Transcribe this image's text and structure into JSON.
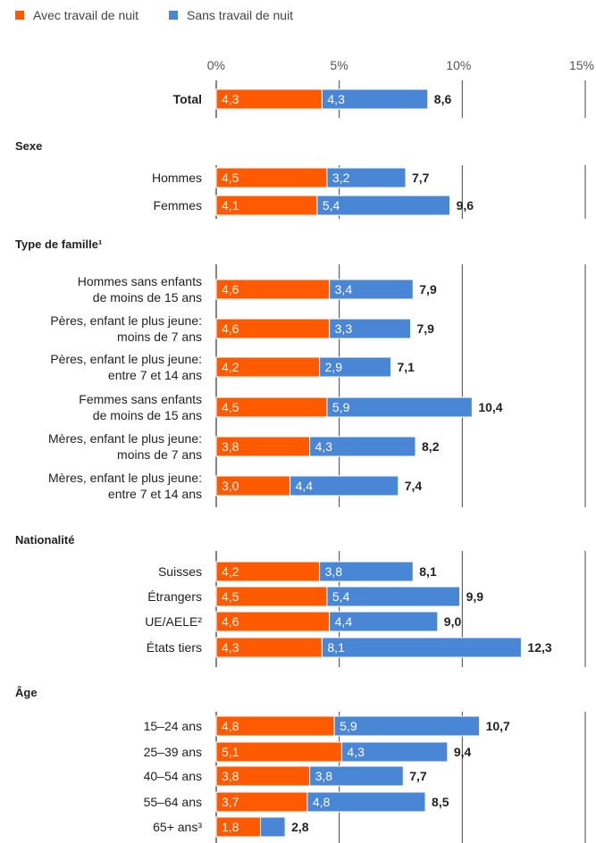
{
  "chart_data": {
    "type": "bar",
    "orientation": "horizontal",
    "stacked": true,
    "title": "",
    "xlabel": "",
    "ylabel": "",
    "xlim": [
      0,
      15
    ],
    "x_ticks": [
      "0%",
      "5%",
      "10%",
      "15%"
    ],
    "grid": true,
    "legend_position": "top-left",
    "series": [
      {
        "name": "Avec travail de nuit",
        "color": "#ff5a00"
      },
      {
        "name": "Sans travail de nuit",
        "color": "#4a86d6"
      }
    ],
    "groups": [
      {
        "title": "",
        "rows": [
          {
            "label": [
              "Total"
            ],
            "bold": true,
            "values": [
              4.3,
              4.3
            ],
            "value_labels": [
              "4,3",
              "4,3"
            ],
            "total": 8.6,
            "total_label": "8,6"
          }
        ]
      },
      {
        "title": "Sexe",
        "rows": [
          {
            "label": [
              "Hommes"
            ],
            "values": [
              4.5,
              3.2
            ],
            "value_labels": [
              "4,5",
              "3,2"
            ],
            "total": 7.7,
            "total_label": "7,7"
          },
          {
            "label": [
              "Femmes"
            ],
            "values": [
              4.1,
              5.4
            ],
            "value_labels": [
              "4,1",
              "5,4"
            ],
            "total": 9.6,
            "total_label": "9,6"
          }
        ]
      },
      {
        "title": "Type de famille¹",
        "rows": [
          {
            "label": [
              "Hommes sans enfants",
              "de moins de 15 ans"
            ],
            "values": [
              4.6,
              3.4
            ],
            "value_labels": [
              "4,6",
              "3,4"
            ],
            "total": 7.9,
            "total_label": "7,9"
          },
          {
            "label": [
              "Pères, enfant le plus jeune:",
              "moins de 7 ans"
            ],
            "values": [
              4.6,
              3.3
            ],
            "value_labels": [
              "4,6",
              "3,3"
            ],
            "total": 7.9,
            "total_label": "7,9"
          },
          {
            "label": [
              "Pères, enfant le plus jeune:",
              "entre 7 et 14 ans"
            ],
            "values": [
              4.2,
              2.9
            ],
            "value_labels": [
              "4,2",
              "2,9"
            ],
            "total": 7.1,
            "total_label": "7,1"
          },
          {
            "label": [
              "Femmes sans enfants",
              "de moins de 15 ans"
            ],
            "values": [
              4.5,
              5.9
            ],
            "value_labels": [
              "4,5",
              "5,9"
            ],
            "total": 10.4,
            "total_label": "10,4"
          },
          {
            "label": [
              "Mères, enfant le plus jeune:",
              "moins de 7 ans"
            ],
            "values": [
              3.8,
              4.3
            ],
            "value_labels": [
              "3,8",
              "4,3"
            ],
            "total": 8.2,
            "total_label": "8,2"
          },
          {
            "label": [
              "Mères, enfant le plus jeune:",
              "entre 7 et 14 ans"
            ],
            "values": [
              3.0,
              4.4
            ],
            "value_labels": [
              "3,0",
              "4,4"
            ],
            "total": 7.4,
            "total_label": "7,4"
          }
        ]
      },
      {
        "title": "Nationalité",
        "rows": [
          {
            "label": [
              "Suisses"
            ],
            "values": [
              4.2,
              3.8
            ],
            "value_labels": [
              "4,2",
              "3,8"
            ],
            "total": 8.1,
            "total_label": "8,1"
          },
          {
            "label": [
              "Étrangers"
            ],
            "values": [
              4.5,
              5.4
            ],
            "value_labels": [
              "4,5",
              "5,4"
            ],
            "total": 9.9,
            "total_label": "9,9"
          },
          {
            "label": [
              "UE/AELE²"
            ],
            "values": [
              4.6,
              4.4
            ],
            "value_labels": [
              "4,6",
              "4,4"
            ],
            "total": 9.0,
            "total_label": "9,0"
          },
          {
            "label": [
              "États tiers"
            ],
            "values": [
              4.3,
              8.1
            ],
            "value_labels": [
              "4,3",
              "8,1"
            ],
            "total": 12.3,
            "total_label": "12,3"
          }
        ]
      },
      {
        "title": "Âge",
        "rows": [
          {
            "label": [
              "15–24 ans"
            ],
            "values": [
              4.8,
              5.9
            ],
            "value_labels": [
              "4,8",
              "5,9"
            ],
            "total": 10.7,
            "total_label": "10,7"
          },
          {
            "label": [
              "25–39 ans"
            ],
            "values": [
              5.1,
              4.3
            ],
            "value_labels": [
              "5,1",
              "4,3"
            ],
            "total": 9.4,
            "total_label": "9,4"
          },
          {
            "label": [
              "40–54 ans"
            ],
            "values": [
              3.8,
              3.8
            ],
            "value_labels": [
              "3,8",
              "3,8"
            ],
            "total": 7.7,
            "total_label": "7,7"
          },
          {
            "label": [
              "55–64 ans"
            ],
            "values": [
              3.7,
              4.8
            ],
            "value_labels": [
              "3,7",
              "4,8"
            ],
            "total": 8.5,
            "total_label": "8,5"
          },
          {
            "label": [
              "65+ ans³"
            ],
            "values": [
              1.8,
              1.0
            ],
            "value_labels": [
              "1,8",
              ""
            ],
            "total": 2.8,
            "total_label": "2,8"
          }
        ]
      }
    ]
  }
}
